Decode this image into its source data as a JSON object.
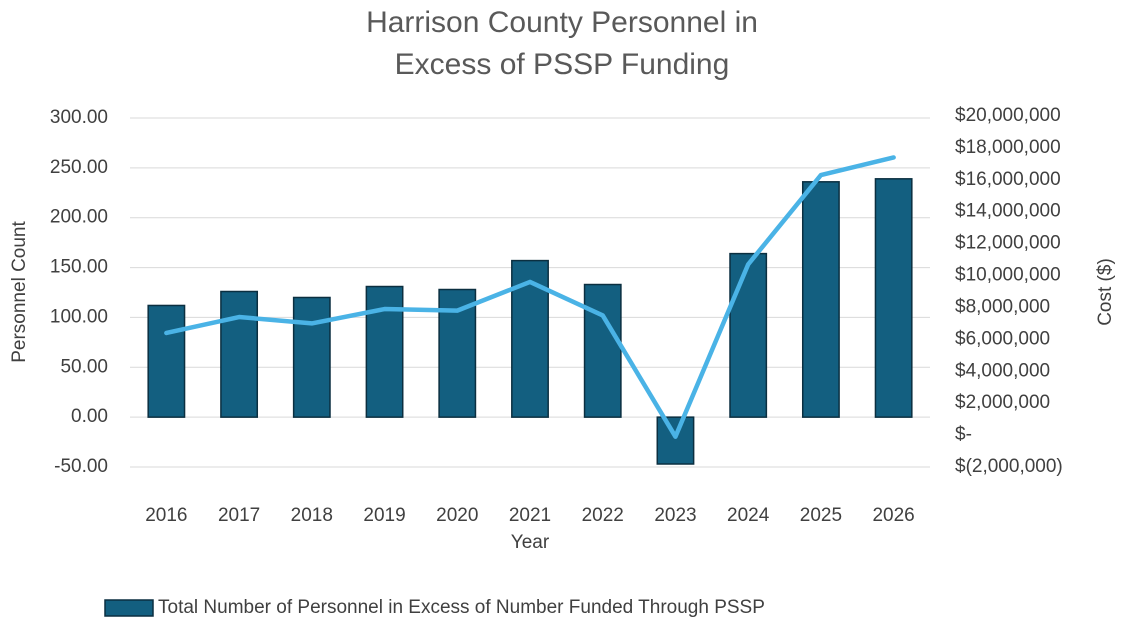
{
  "chart_data": {
    "type": "bar_line",
    "title": [
      "Harrison County Personnel in",
      "Excess of PSSP Funding"
    ],
    "x_label": "Year",
    "y_label": "Personnel Count",
    "y2_label": "Cost ($)",
    "categories": [
      "2016",
      "2017",
      "2018",
      "2019",
      "2020",
      "2021",
      "2022",
      "2023",
      "2024",
      "2025",
      "2026"
    ],
    "series": [
      {
        "name": "Total Number of Personnel in Excess of Number Funded Through PSSP",
        "type": "bar",
        "color": "#135f80",
        "values": [
          112,
          126,
          120,
          131,
          128,
          157,
          133,
          -47,
          164,
          236,
          239
        ]
      },
      {
        "type": "line",
        "axis": "y2",
        "color": "#4ab3e6",
        "values": [
          6400000,
          7400000,
          7000000,
          7900000,
          7800000,
          9600000,
          7500000,
          -100000,
          10700000,
          16300000,
          17400000
        ]
      }
    ],
    "ylim": [
      -50,
      300
    ],
    "yticks": [
      {
        "value": -50,
        "label": "-50.00"
      },
      {
        "value": 0,
        "label": "0.00"
      },
      {
        "value": 50,
        "label": "50.00"
      },
      {
        "value": 100,
        "label": "100.00"
      },
      {
        "value": 150,
        "label": "150.00"
      },
      {
        "value": 200,
        "label": "200.00"
      },
      {
        "value": 250,
        "label": "250.00"
      },
      {
        "value": 300,
        "label": "300.00"
      }
    ],
    "y2lim": [
      -2000000,
      20000000
    ],
    "y2ticks": [
      {
        "value": -2000000,
        "label": "$(2,000,000)"
      },
      {
        "value": 0,
        "label": "$-"
      },
      {
        "value": 2000000,
        "label": "$2,000,000"
      },
      {
        "value": 4000000,
        "label": "$4,000,000"
      },
      {
        "value": 6000000,
        "label": "$6,000,000"
      },
      {
        "value": 8000000,
        "label": "$8,000,000"
      },
      {
        "value": 10000000,
        "label": "$10,000,000"
      },
      {
        "value": 12000000,
        "label": "$12,000,000"
      },
      {
        "value": 14000000,
        "label": "$14,000,000"
      },
      {
        "value": 16000000,
        "label": "$16,000,000"
      },
      {
        "value": 18000000,
        "label": "$18,000,000"
      },
      {
        "value": 20000000,
        "label": "$20,000,000"
      }
    ],
    "grid": true,
    "legend": "bottom"
  }
}
